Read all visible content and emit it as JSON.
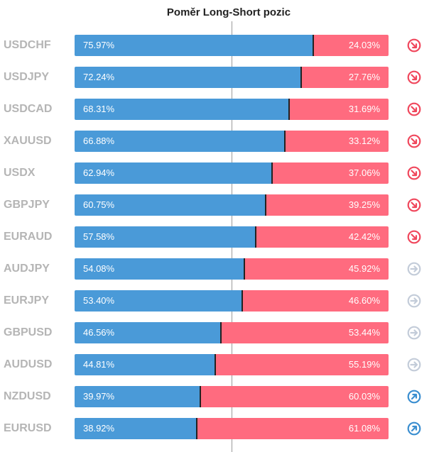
{
  "title": "Poměr Long-Short pozic",
  "colors": {
    "long": "#4a9ad8",
    "short": "#ff6b7f",
    "symbol_text": "#b5b5b5",
    "signal_down": "#f0475c",
    "signal_neutral": "#c3ccd9",
    "signal_up": "#3a8ed0"
  },
  "chart_data": {
    "type": "bar",
    "stacked": true,
    "orientation": "horizontal",
    "title": "Poměr Long-Short pozic",
    "xlim": [
      0,
      100
    ],
    "categories": [
      "USDCHF",
      "USDJPY",
      "USDCAD",
      "XAUUSD",
      "USDX",
      "GBPJPY",
      "EURAUD",
      "AUDJPY",
      "EURJPY",
      "GBPUSD",
      "AUDUSD",
      "NZDUSD",
      "EURUSD"
    ],
    "series": [
      {
        "values": [
          75.97,
          72.24,
          68.31,
          66.88,
          62.94,
          60.75,
          57.58,
          54.08,
          53.4,
          46.56,
          44.81,
          39.97,
          38.92
        ]
      },
      {
        "values": [
          24.03,
          27.76,
          31.69,
          33.12,
          37.06,
          39.25,
          42.42,
          45.92,
          46.6,
          53.44,
          55.19,
          60.03,
          61.08
        ]
      }
    ],
    "long_labels": [
      "75.97%",
      "72.24%",
      "68.31%",
      "66.88%",
      "62.94%",
      "60.75%",
      "57.58%",
      "54.08%",
      "53.40%",
      "46.56%",
      "44.81%",
      "39.97%",
      "38.92%"
    ],
    "short_labels": [
      "24.03%",
      "27.76%",
      "31.69%",
      "33.12%",
      "37.06%",
      "39.25%",
      "42.42%",
      "45.92%",
      "46.60%",
      "53.44%",
      "55.19%",
      "60.03%",
      "61.08%"
    ],
    "signals": [
      "down",
      "down",
      "down",
      "down",
      "down",
      "down",
      "down",
      "neutral",
      "neutral",
      "neutral",
      "neutral",
      "up",
      "up"
    ]
  }
}
